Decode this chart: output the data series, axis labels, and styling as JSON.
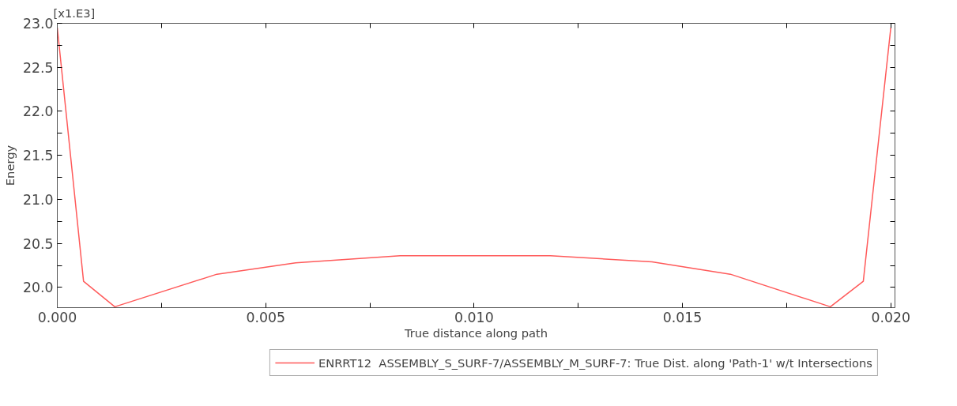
{
  "chart_data": {
    "type": "line",
    "xlabel": "True distance along path",
    "ylabel": "Energy",
    "annotations": [
      "[x1.E3]"
    ],
    "x": [
      0.0,
      0.00063,
      0.00138,
      0.00383,
      0.00572,
      0.00823,
      0.01183,
      0.01427,
      0.01615,
      0.01855,
      0.01934,
      0.02
    ],
    "series": [
      {
        "name": "ENRRT12  ASSEMBLY_S_SURF-7/ASSEMBLY_M_SURF-7: True Dist. along 'Path-1' w/t Intersections",
        "color": "#ff5a5a",
        "values": [
          22.95,
          20.07,
          19.78,
          20.15,
          20.28,
          20.36,
          20.36,
          20.29,
          20.15,
          19.78,
          20.07,
          22.95
        ]
      }
    ],
    "xlim": [
      0.0,
      0.0201
    ],
    "ylim": [
      19.77,
      23.0
    ],
    "xticks": [
      {
        "value": 0.0,
        "label": "0.000"
      },
      {
        "value": 0.0025,
        "label": null
      },
      {
        "value": 0.005,
        "label": "0.005"
      },
      {
        "value": 0.0075,
        "label": null
      },
      {
        "value": 0.01,
        "label": "0.010"
      },
      {
        "value": 0.0125,
        "label": null
      },
      {
        "value": 0.015,
        "label": "0.015"
      },
      {
        "value": 0.0175,
        "label": null
      },
      {
        "value": 0.02,
        "label": "0.020"
      }
    ],
    "yticks": [
      {
        "value": 20.0,
        "label": "20.0"
      },
      {
        "value": 20.25,
        "label": null
      },
      {
        "value": 20.5,
        "label": "20.5"
      },
      {
        "value": 20.75,
        "label": null
      },
      {
        "value": 21.0,
        "label": "21.0"
      },
      {
        "value": 21.25,
        "label": null
      },
      {
        "value": 21.5,
        "label": "21.5"
      },
      {
        "value": 21.75,
        "label": null
      },
      {
        "value": 22.0,
        "label": "22.0"
      },
      {
        "value": 22.25,
        "label": null
      },
      {
        "value": 22.5,
        "label": "22.5"
      },
      {
        "value": 22.75,
        "label": null
      },
      {
        "value": 23.0,
        "label": "23.0"
      }
    ],
    "grid": false,
    "legend": "bottom",
    "marker": "none",
    "line_style": "solid"
  }
}
